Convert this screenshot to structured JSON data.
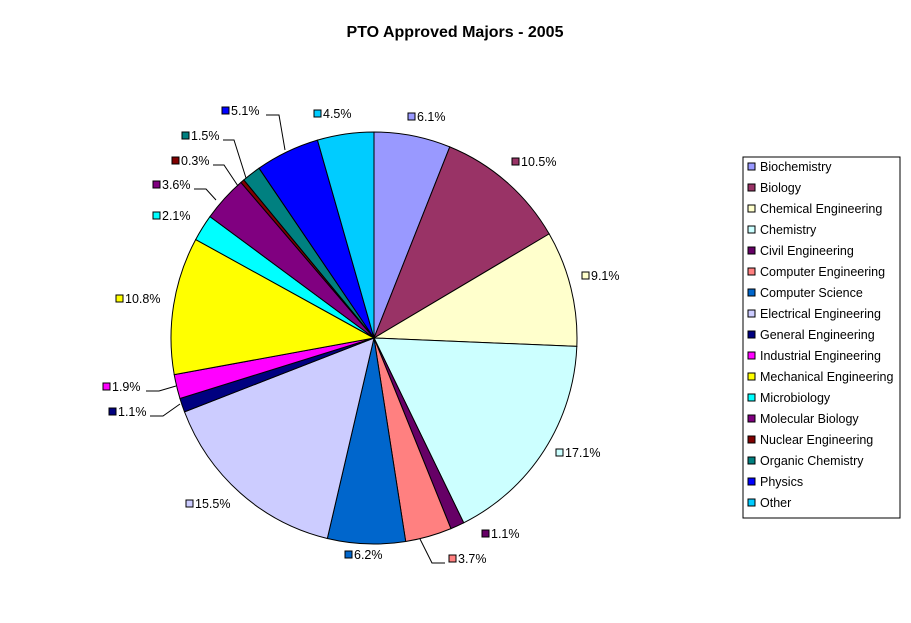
{
  "chart_data": {
    "type": "pie",
    "title": "PTO Approved Majors - 2005",
    "legend_position": "right",
    "categories": [
      "Biochemistry",
      "Biology",
      "Chemical Engineering",
      "Chemistry",
      "Civil Engineering",
      "Computer Engineering",
      "Computer Science",
      "Electrical Engineering",
      "General Engineering",
      "Industrial Engineering",
      "Mechanical Engineering",
      "Microbiology",
      "Molecular Biology",
      "Nuclear Engineering",
      "Organic Chemistry",
      "Physics",
      "Other"
    ],
    "values": [
      6.1,
      10.5,
      9.1,
      17.1,
      1.1,
      3.7,
      6.2,
      15.5,
      1.1,
      1.9,
      10.8,
      2.1,
      3.6,
      0.3,
      1.5,
      5.1,
      4.5
    ],
    "labels": [
      "6.1%",
      "10.5%",
      "9.1%",
      "17.1%",
      "1.1%",
      "3.7%",
      "6.2%",
      "15.5%",
      "1.1%",
      "1.9%",
      "10.8%",
      "2.1%",
      "3.6%",
      "0.3%",
      "1.5%",
      "5.1%",
      "4.5%"
    ],
    "colors": [
      "#9999ff",
      "#993366",
      "#ffffcc",
      "#ccffff",
      "#660066",
      "#ff8080",
      "#0066cc",
      "#ccccff",
      "#000080",
      "#ff00ff",
      "#ffff00",
      "#00ffff",
      "#800080",
      "#800000",
      "#008080",
      "#0000ff",
      "#00ccff"
    ]
  }
}
